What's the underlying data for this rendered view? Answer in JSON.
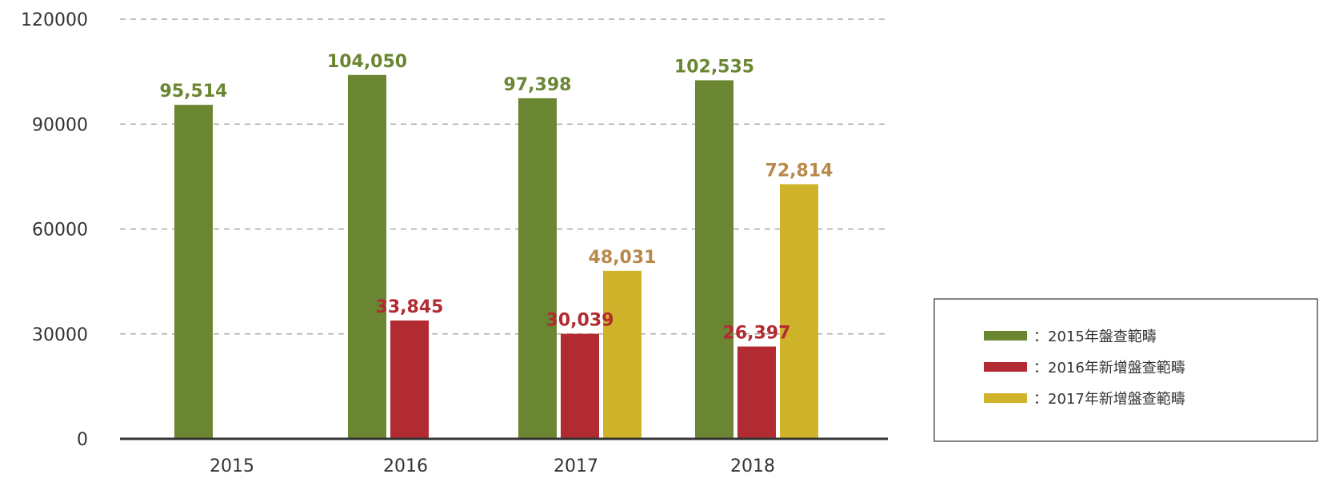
{
  "colors": {
    "series_2015": "#6b8632",
    "series_2016": "#b22b32",
    "series_2017": "#cfb32a",
    "label_2015": "#6b8632",
    "label_2016": "#b22b32",
    "label_2017": "#b8894a",
    "grid": "#999999",
    "axis": "#333333"
  },
  "chart_data": {
    "type": "bar",
    "categories": [
      "2015",
      "2016",
      "2017",
      "2018"
    ],
    "series": [
      {
        "name": "：2015年盤查範疇",
        "values": [
          95514,
          104050,
          97398,
          102535
        ],
        "value_labels": [
          "95,514",
          "104,050",
          "97,398",
          "102,535"
        ],
        "color_key": "series_2015",
        "label_color_key": "label_2015"
      },
      {
        "name": "：2016年新增盤查範疇",
        "values": [
          null,
          33845,
          30039,
          26397
        ],
        "value_labels": [
          null,
          "33,845",
          "30,039",
          "26,397"
        ],
        "color_key": "series_2016",
        "label_color_key": "label_2016"
      },
      {
        "name": "：2017年新增盤查範疇",
        "values": [
          null,
          null,
          48031,
          72814
        ],
        "value_labels": [
          null,
          null,
          "48,031",
          "72,814"
        ],
        "color_key": "series_2017",
        "label_color_key": "label_2017"
      }
    ],
    "yticks": [
      0,
      30000,
      60000,
      90000,
      120000
    ],
    "ytick_labels": [
      "0",
      "30000",
      "60000",
      "90000",
      "120000"
    ],
    "ylim": [
      0,
      120000
    ],
    "grid": true,
    "legend_position": "right"
  }
}
